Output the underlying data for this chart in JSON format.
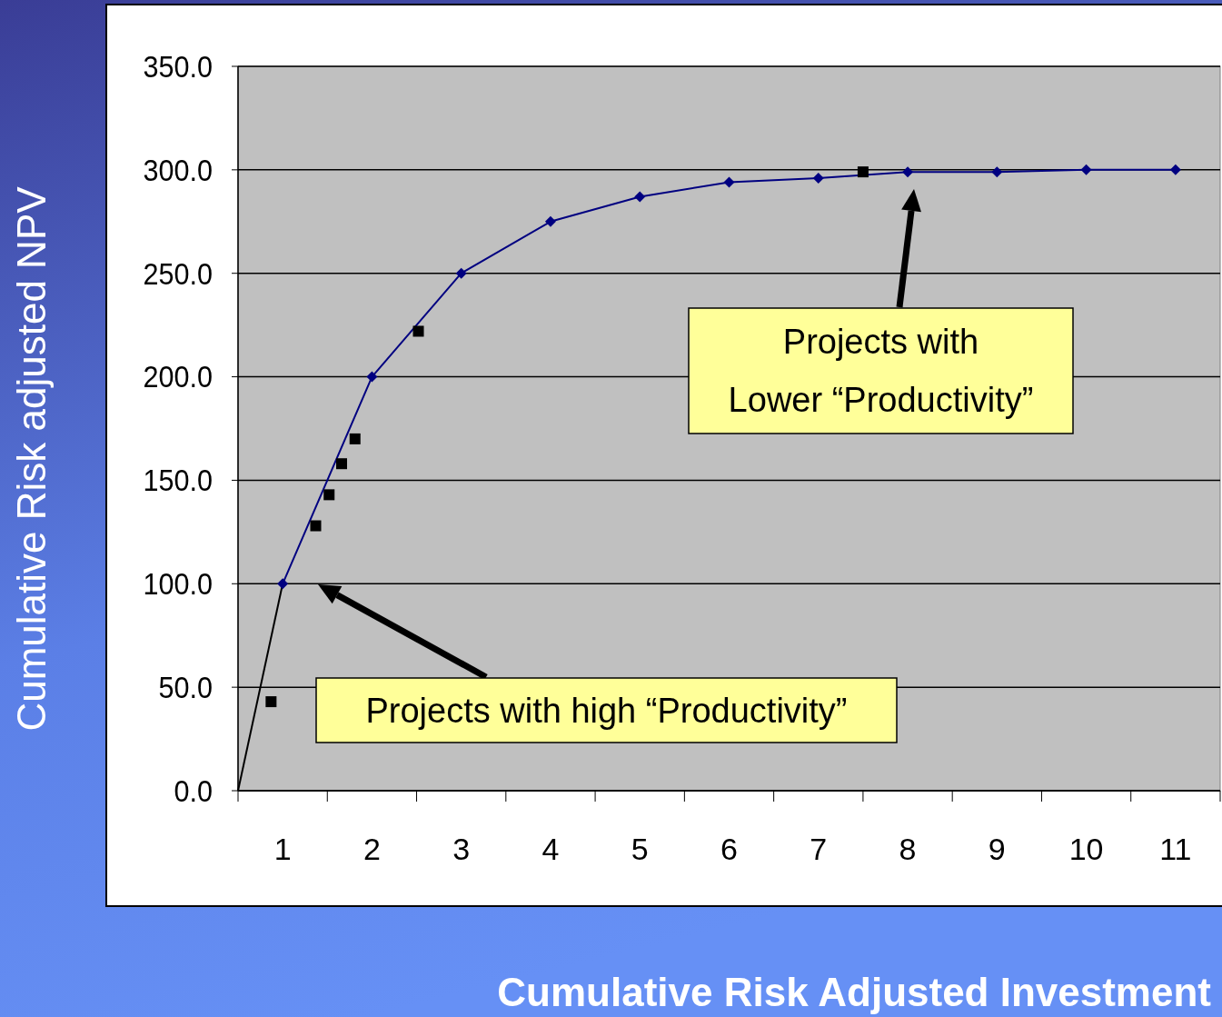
{
  "chart_data": {
    "type": "line",
    "xlabel": "Cumulative Risk Adjusted Investment",
    "ylabel": "Cumulative Risk adjusted NPV",
    "xlim": [
      0.5,
      11.5
    ],
    "ylim": [
      0,
      350
    ],
    "xticks": [
      {
        "value": 0.5,
        "label": null
      },
      {
        "value": 1,
        "label": "1"
      },
      {
        "value": 1.5,
        "label": null
      },
      {
        "value": 2,
        "label": "2"
      },
      {
        "value": 2.5,
        "label": null
      },
      {
        "value": 3,
        "label": "3"
      },
      {
        "value": 3.5,
        "label": null
      },
      {
        "value": 4,
        "label": "4"
      },
      {
        "value": 4.5,
        "label": null
      },
      {
        "value": 5,
        "label": "5"
      },
      {
        "value": 5.5,
        "label": null
      },
      {
        "value": 6,
        "label": "6"
      },
      {
        "value": 6.5,
        "label": null
      },
      {
        "value": 7,
        "label": "7"
      },
      {
        "value": 7.5,
        "label": null
      },
      {
        "value": 8,
        "label": "8"
      },
      {
        "value": 8.5,
        "label": null
      },
      {
        "value": 9,
        "label": "9"
      },
      {
        "value": 9.5,
        "label": null
      },
      {
        "value": 10,
        "label": "10"
      },
      {
        "value": 10.5,
        "label": null
      },
      {
        "value": 11,
        "label": "11"
      },
      {
        "value": 11.5,
        "label": null
      }
    ],
    "yticks": [
      {
        "value": 0,
        "label": "0.0"
      },
      {
        "value": 50,
        "label": "50.0"
      },
      {
        "value": 100,
        "label": "100.0"
      },
      {
        "value": 150,
        "label": "150.0"
      },
      {
        "value": 200,
        "label": "200.0"
      },
      {
        "value": 250,
        "label": "250.0"
      },
      {
        "value": 300,
        "label": "300.0"
      },
      {
        "value": 350,
        "label": "350.0"
      }
    ],
    "grid": "y",
    "series": [
      {
        "color": "#000000",
        "marker": "none",
        "x": [
          0.5,
          1
        ],
        "values": [
          0,
          100
        ]
      },
      {
        "color": "#000080",
        "marker": "diamond",
        "x": [
          1,
          2,
          3,
          4,
          5,
          6,
          7,
          8,
          9,
          10,
          11
        ],
        "values": [
          100,
          200,
          250,
          275,
          287,
          294,
          296,
          299,
          299,
          300,
          300
        ]
      },
      {
        "type": "scatter",
        "color": "#000000",
        "marker": "square",
        "x": [
          0.87,
          1.37,
          1.52,
          1.66,
          1.81,
          2.52,
          7.5
        ],
        "values": [
          43,
          128,
          143,
          158,
          170,
          222,
          299
        ]
      }
    ],
    "annotations": [
      "Projects with high “Productivity”",
      "Projects with\nLower “Productivity”"
    ]
  }
}
